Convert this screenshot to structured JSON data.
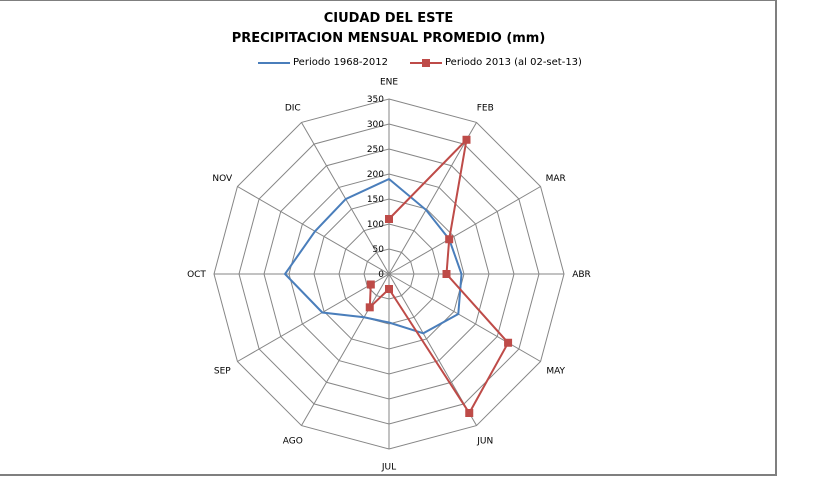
{
  "chart_data": {
    "type": "radar",
    "title": "CIUDAD DEL ESTE",
    "subtitle": "PRECIPITACION MENSUAL PROMEDIO  (mm)",
    "categories": [
      "ENE",
      "FEB",
      "MAR",
      "ABR",
      "MAY",
      "JUN",
      "JUL",
      "AGO",
      "SEP",
      "OCT",
      "NOV",
      "DIC"
    ],
    "rlim": [
      0,
      350
    ],
    "ticks": [
      "0",
      "50",
      "100",
      "150",
      "200",
      "250",
      "300",
      "350"
    ],
    "tick_values": [
      0,
      50,
      100,
      150,
      200,
      250,
      300,
      350
    ],
    "grid": true,
    "legend_position": "top",
    "series": [
      {
        "name": "Periodo 1968-2012",
        "color": "#4a7ebb",
        "marker": "none",
        "values": [
          190,
          148,
          139,
          145,
          160,
          137,
          97,
          100,
          154,
          208,
          171,
          173
        ]
      },
      {
        "name": "Periodo 2013 (al 02-set-13)",
        "color": "#be4b48",
        "marker": "square",
        "values": [
          110,
          310,
          139,
          115,
          275,
          321,
          30,
          77,
          42,
          null,
          null,
          null
        ]
      }
    ]
  }
}
